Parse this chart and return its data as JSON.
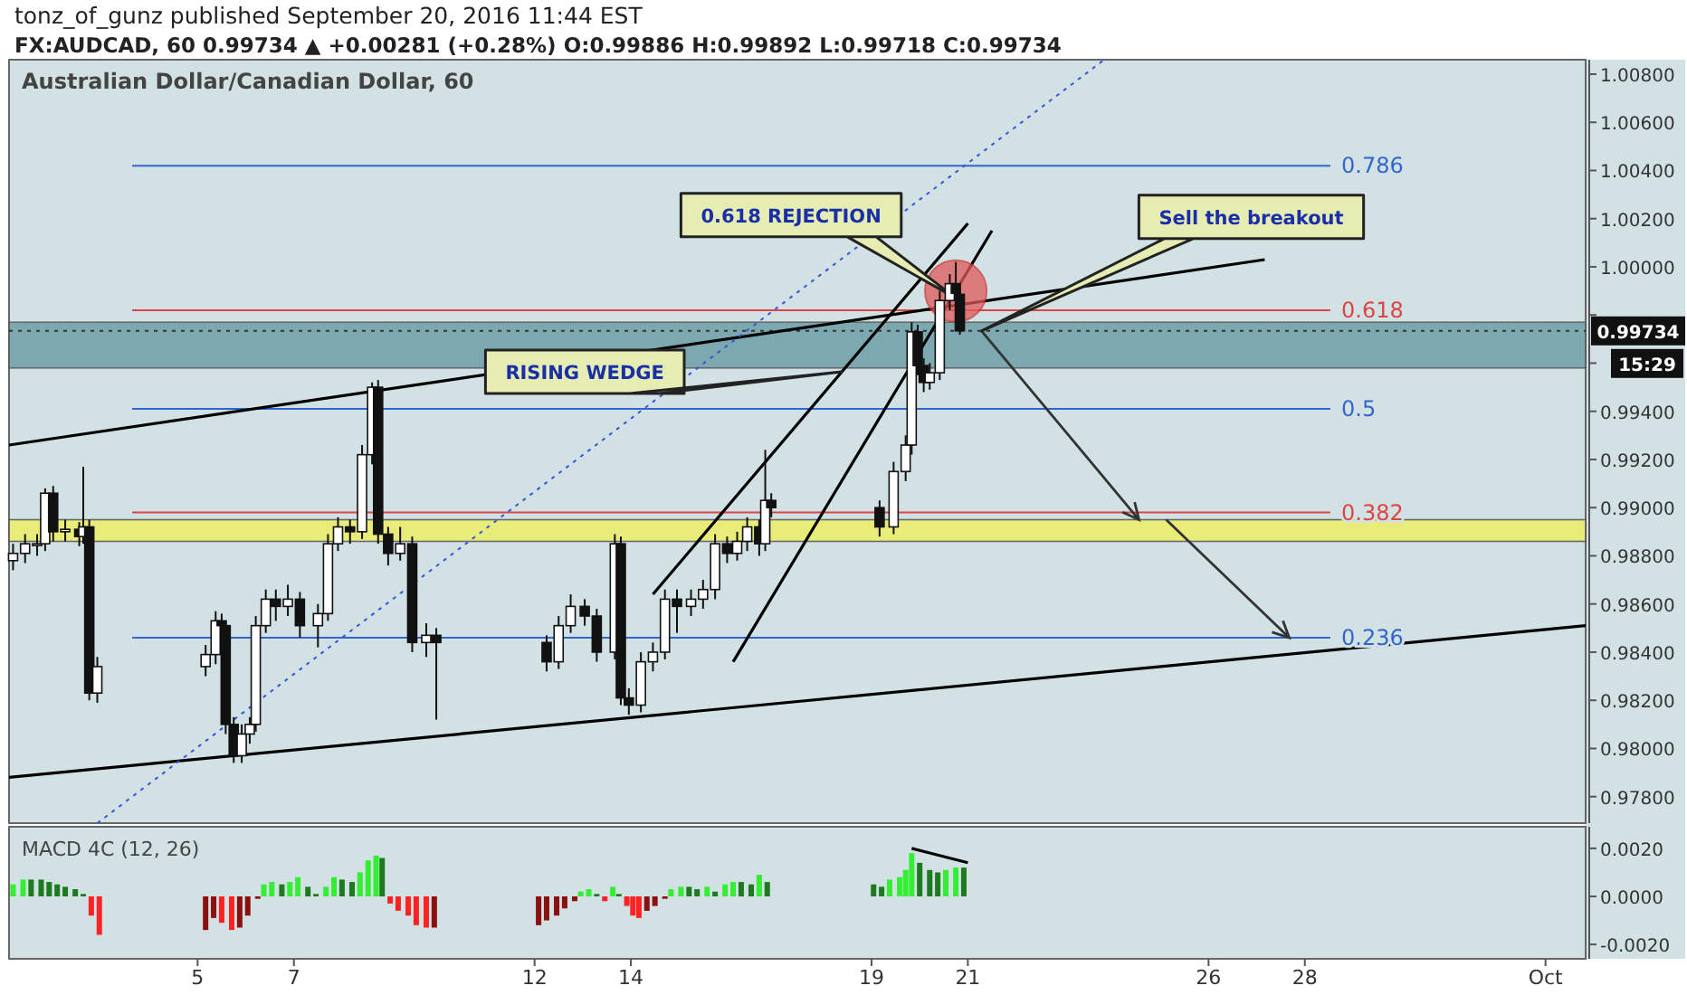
{
  "chart_data": [
    {
      "type": "candlestick",
      "title": "tonz_of_gunz published September 20, 2016 11:44 EST",
      "subtitle": "FX:AUDCAD, 60 0.99734 ▲ +0.00281 (+0.28%) O:0.99886 H:0.99892 L:0.99718 C:0.99734",
      "x": [
        "2016-09-01T04:00",
        "2016-09-01T10:00",
        "2016-09-01T16:00",
        "2016-09-01T20:00",
        "2016-09-02T00:00",
        "2016-09-02T06:00",
        "2016-09-02T13:00",
        "2016-09-02T15:00",
        "2016-09-02T18:00",
        "2016-09-02T22:00",
        "2016-09-05T04:00",
        "2016-09-05T09:00",
        "2016-09-05T12:00",
        "2016-09-05T14:00",
        "2016-09-05T18:00",
        "2016-09-05T22:00",
        "2016-09-06T02:00",
        "2016-09-06T05:00",
        "2016-09-06T10:00",
        "2016-09-06T15:00",
        "2016-09-06T21:00",
        "2016-09-07T03:00",
        "2016-09-07T12:00",
        "2016-09-07T17:00",
        "2016-09-07T22:00",
        "2016-09-08T04:00",
        "2016-09-08T10:00",
        "2016-09-08T15:00",
        "2016-09-08T18:00",
        "2016-09-08T23:00",
        "2016-09-09T05:00",
        "2016-09-09T11:00",
        "2016-09-09T18:00",
        "2016-09-09T23:00",
        "2016-09-12T06:00",
        "2016-09-12T12:00",
        "2016-09-12T18:00",
        "2016-09-13T01:00",
        "2016-09-13T07:00",
        "2016-09-13T16:00",
        "2016-09-13T19:00",
        "2016-09-13T23:00",
        "2016-09-14T05:00",
        "2016-09-14T11:00",
        "2016-09-14T17:00",
        "2016-09-14T23:00",
        "2016-09-15T06:00",
        "2016-09-15T12:00",
        "2016-09-15T18:00",
        "2016-09-16T00:00",
        "2016-09-16T05:00",
        "2016-09-16T10:00",
        "2016-09-16T16:00",
        "2016-09-16T19:00",
        "2016-09-16T22:00",
        "2016-09-19T04:00",
        "2016-09-19T11:00",
        "2016-09-19T17:00",
        "2016-09-19T20:00",
        "2016-09-19T23:00",
        "2016-09-20T02:00",
        "2016-09-20T05:00",
        "2016-09-20T10:00",
        "2016-09-20T15:00",
        "2016-09-20T18:00",
        "2016-09-20T20:00"
      ],
      "ohlc": [
        [
          0.9878,
          0.9885,
          0.9874,
          0.9881
        ],
        [
          0.9881,
          0.9889,
          0.9877,
          0.9885
        ],
        [
          0.9885,
          0.9889,
          0.988,
          0.9885
        ],
        [
          0.9885,
          0.9908,
          0.9882,
          0.9906
        ],
        [
          0.9906,
          0.9909,
          0.9886,
          0.989
        ],
        [
          0.989,
          0.9895,
          0.9886,
          0.9891
        ],
        [
          0.9891,
          0.9894,
          0.9884,
          0.9888
        ],
        [
          0.9888,
          0.9917,
          0.9885,
          0.9892
        ],
        [
          0.9892,
          0.9895,
          0.982,
          0.9823
        ],
        [
          0.9823,
          0.9838,
          0.9819,
          0.9834
        ],
        [
          0.9834,
          0.9843,
          0.983,
          0.9839
        ],
        [
          0.9839,
          0.9857,
          0.9835,
          0.9853
        ],
        [
          0.9853,
          0.9856,
          0.9846,
          0.9851
        ],
        [
          0.9851,
          0.9853,
          0.9806,
          0.981
        ],
        [
          0.981,
          0.9813,
          0.9794,
          0.9797
        ],
        [
          0.9797,
          0.981,
          0.9794,
          0.9806
        ],
        [
          0.9806,
          0.9813,
          0.9802,
          0.981
        ],
        [
          0.981,
          0.9855,
          0.9807,
          0.9851
        ],
        [
          0.9851,
          0.9866,
          0.9848,
          0.9862
        ],
        [
          0.9862,
          0.9866,
          0.9853,
          0.9859
        ],
        [
          0.9859,
          0.9868,
          0.9855,
          0.9862
        ],
        [
          0.9862,
          0.9865,
          0.9846,
          0.9851
        ],
        [
          0.9851,
          0.986,
          0.9842,
          0.9856
        ],
        [
          0.9856,
          0.9889,
          0.9853,
          0.9885
        ],
        [
          0.9885,
          0.9896,
          0.9882,
          0.9892
        ],
        [
          0.9892,
          0.9895,
          0.9885,
          0.989
        ],
        [
          0.989,
          0.9926,
          0.9887,
          0.9922
        ],
        [
          0.9922,
          0.9952,
          0.9918,
          0.995
        ],
        [
          0.995,
          0.9953,
          0.9885,
          0.9889
        ],
        [
          0.9889,
          0.9892,
          0.9876,
          0.9881
        ],
        [
          0.9881,
          0.9892,
          0.9878,
          0.9885
        ],
        [
          0.9885,
          0.9888,
          0.984,
          0.9844
        ],
        [
          0.9844,
          0.9852,
          0.9838,
          0.9847
        ],
        [
          0.9847,
          0.985,
          0.9812,
          0.9844
        ],
        [
          0.9844,
          0.9847,
          0.9832,
          0.9836
        ],
        [
          0.9836,
          0.9855,
          0.9833,
          0.9851
        ],
        [
          0.9851,
          0.9864,
          0.9848,
          0.9859
        ],
        [
          0.9859,
          0.9862,
          0.9851,
          0.9855
        ],
        [
          0.9855,
          0.9858,
          0.9836,
          0.984
        ],
        [
          0.984,
          0.9889,
          0.9837,
          0.9885
        ],
        [
          0.9885,
          0.9888,
          0.9818,
          0.9821
        ],
        [
          0.9821,
          0.9825,
          0.9814,
          0.9818
        ],
        [
          0.9818,
          0.984,
          0.9815,
          0.9836
        ],
        [
          0.9836,
          0.9844,
          0.9832,
          0.984
        ],
        [
          0.984,
          0.9866,
          0.9837,
          0.9862
        ],
        [
          0.9862,
          0.9866,
          0.9848,
          0.9859
        ],
        [
          0.9859,
          0.9866,
          0.9855,
          0.9862
        ],
        [
          0.9862,
          0.987,
          0.9858,
          0.9866
        ],
        [
          0.9866,
          0.9889,
          0.9862,
          0.9885
        ],
        [
          0.9885,
          0.9888,
          0.9877,
          0.9881
        ],
        [
          0.9881,
          0.989,
          0.9878,
          0.9886
        ],
        [
          0.9886,
          0.9896,
          0.9882,
          0.9892
        ],
        [
          0.9892,
          0.9895,
          0.988,
          0.9885
        ],
        [
          0.9885,
          0.9924,
          0.9882,
          0.9903
        ],
        [
          0.9903,
          0.9906,
          0.9896,
          0.99
        ],
        [
          0.99,
          0.9903,
          0.9888,
          0.9892
        ],
        [
          0.9892,
          0.9919,
          0.9889,
          0.9915
        ],
        [
          0.9915,
          0.993,
          0.9911,
          0.9926
        ],
        [
          0.9926,
          0.9977,
          0.9922,
          0.9973
        ],
        [
          0.9973,
          0.9976,
          0.9955,
          0.9959
        ],
        [
          0.9959,
          0.9962,
          0.9948,
          0.9952
        ],
        [
          0.9952,
          0.996,
          0.9949,
          0.9956
        ],
        [
          0.9956,
          0.999,
          0.9953,
          0.9986
        ],
        [
          0.9986,
          0.9997,
          0.9982,
          0.9993
        ],
        [
          0.9993,
          1.0002,
          0.9986,
          0.9989
        ],
        [
          0.99886,
          0.99892,
          0.99718,
          0.99734
        ]
      ],
      "xlim": [
        "2016-09-01T02:00",
        "2016-10-03T20:00"
      ],
      "ylim": [
        0.9769,
        1.0086
      ],
      "yticks": [
        {
          "value": 0.978,
          "label": "0.97800"
        },
        {
          "value": 0.98,
          "label": "0.98000"
        },
        {
          "value": 0.982,
          "label": "0.98200"
        },
        {
          "value": 0.984,
          "label": "0.98400"
        },
        {
          "value": 0.986,
          "label": "0.98600"
        },
        {
          "value": 0.988,
          "label": "0.98800"
        },
        {
          "value": 0.99,
          "label": "0.99000"
        },
        {
          "value": 0.992,
          "label": "0.99200"
        },
        {
          "value": 0.994,
          "label": "0.99400"
        },
        {
          "value": 0.996,
          "label": null
        },
        {
          "value": 0.998,
          "label": null
        },
        {
          "value": 1.0,
          "label": "1.00000"
        },
        {
          "value": 1.002,
          "label": "1.00200"
        },
        {
          "value": 1.004,
          "label": "1.00400"
        },
        {
          "value": 1.006,
          "label": "1.00600"
        },
        {
          "value": 1.008,
          "label": "1.00800"
        }
      ],
      "tick_labels": "y",
      "grid": false,
      "series": [
        {
          "type": "line",
          "x": [
            "2016-09-01T02:00",
            "2016-10-03T20:00"
          ],
          "values": [
            0.9788,
            0.9851
          ],
          "color": "#000000"
        },
        {
          "type": "line",
          "x": [
            "2016-09-01T02:00",
            "2016-09-27T04:00"
          ],
          "values": [
            0.9926,
            1.0003
          ],
          "color": "#000000"
        },
        {
          "type": "line",
          "x": [
            "2016-09-14T11:00",
            "2016-09-21T00:00"
          ],
          "values": [
            0.9864,
            1.0018
          ],
          "color": "#000000"
        },
        {
          "type": "line",
          "x": [
            "2016-09-16T03:00",
            "2016-09-21T12:00"
          ],
          "values": [
            0.9836,
            1.0015
          ],
          "color": "#000000"
        },
        {
          "type": "line",
          "x": [
            "2016-09-02T22:00",
            "2016-09-23T20:00"
          ],
          "values": [
            0.9769,
            1.0086
          ],
          "color": "#3355dd",
          "line_style": "dotted"
        }
      ],
      "ref_lines": [
        {
          "axis": "y",
          "value": 1.0042,
          "color": "#3366cc"
        },
        {
          "axis": "y",
          "value": 0.9982,
          "color": "#dd4444"
        },
        {
          "axis": "y",
          "value": 0.9941,
          "color": "#3366cc"
        },
        {
          "axis": "y",
          "value": 0.9898,
          "color": "#dd4444"
        },
        {
          "axis": "y",
          "value": 0.9846,
          "color": "#3366cc"
        },
        {
          "axis": "y",
          "value": 0.99734,
          "label": "0.99734",
          "color": "#333333",
          "line_style": "dotted"
        }
      ],
      "bands": [
        {
          "axis": "y",
          "from": 0.9958,
          "to": 0.9977,
          "color": "#6e9fa8"
        },
        {
          "axis": "y",
          "from": 0.9886,
          "to": 0.9895,
          "color": "#eeee66"
        }
      ],
      "annotations": [
        "Australian Dollar/Canadian Dollar, 60",
        "0.618 REJECTION",
        "Sell the breakout",
        "RISING WEDGE",
        "15:29",
        "0.786",
        "0.618",
        "0.5",
        "0.382",
        "0.236"
      ]
    },
    {
      "type": "bar",
      "title": "MACD 4C (12, 26)",
      "xlim": [
        "2016-09-01T02:00",
        "2016-10-03T20:00"
      ],
      "xticks": [
        {
          "value": "2016-09-05",
          "label": "5"
        },
        {
          "value": "2016-09-07",
          "label": "7"
        },
        {
          "value": "2016-09-12",
          "label": "12"
        },
        {
          "value": "2016-09-14",
          "label": "14"
        },
        {
          "value": "2016-09-19",
          "label": "19"
        },
        {
          "value": "2016-09-21",
          "label": "21"
        },
        {
          "value": "2016-09-26",
          "label": "26"
        },
        {
          "value": "2016-09-28",
          "label": "28"
        },
        {
          "value": "2016-10-03",
          "label": "Oct"
        }
      ],
      "ylim": [
        -0.0026,
        0.0029
      ],
      "yticks": [
        {
          "value": 0.002,
          "label": "0.0020"
        },
        {
          "value": 0,
          "label": "0.0000"
        },
        {
          "value": -0.002,
          "label": "-0.0020"
        }
      ],
      "grid": false,
      "series": [
        {
          "type": "bar",
          "x": [
            "2016-09-01T04:00",
            "2016-09-01T09:00",
            "2016-09-01T13:00",
            "2016-09-01T18:00",
            "2016-09-01T22:00",
            "2016-09-02T02:00",
            "2016-09-02T06:00",
            "2016-09-02T11:00",
            "2016-09-02T15:00",
            "2016-09-02T19:00",
            "2016-09-02T23:00",
            "2016-09-05T04:00",
            "2016-09-05T08:00",
            "2016-09-05T12:00",
            "2016-09-05T17:00",
            "2016-09-05T21:00",
            "2016-09-06T01:00",
            "2016-09-06T06:00",
            "2016-09-06T09:00",
            "2016-09-06T13:00",
            "2016-09-06T18:00",
            "2016-09-06T22:00",
            "2016-09-07T02:00",
            "2016-09-07T07:00",
            "2016-09-07T11:00",
            "2016-09-07T16:00",
            "2016-09-07T20:00",
            "2016-09-08T00:00",
            "2016-09-08T05:00",
            "2016-09-08T09:00",
            "2016-09-08T13:00",
            "2016-09-08T17:00",
            "2016-09-08T20:00",
            "2016-09-09T00:00",
            "2016-09-09T04:00",
            "2016-09-09T09:00",
            "2016-09-09T13:00",
            "2016-09-09T18:00",
            "2016-09-09T22:00",
            "2016-09-12T02:00",
            "2016-09-12T06:00",
            "2016-09-12T11:00",
            "2016-09-12T15:00",
            "2016-09-12T20:00",
            "2016-09-12T23:00",
            "2016-09-13T03:00",
            "2016-09-13T07:00",
            "2016-09-13T11:00",
            "2016-09-13T15:00",
            "2016-09-13T18:00",
            "2016-09-13T22:00",
            "2016-09-14T01:00",
            "2016-09-14T04:00",
            "2016-09-14T08:00",
            "2016-09-14T12:00",
            "2016-09-14T17:00",
            "2016-09-14T20:00",
            "2016-09-15T01:00",
            "2016-09-15T05:00",
            "2016-09-15T09:00",
            "2016-09-15T14:00",
            "2016-09-15T18:00",
            "2016-09-15T23:00",
            "2016-09-16T03:00",
            "2016-09-16T07:00",
            "2016-09-16T12:00",
            "2016-09-16T16:00",
            "2016-09-16T20:00",
            "2016-09-19T01:00",
            "2016-09-19T05:00",
            "2016-09-19T09:00",
            "2016-09-19T14:00",
            "2016-09-19T17:00",
            "2016-09-19T20:00",
            "2016-09-20T00:00",
            "2016-09-20T05:00",
            "2016-09-20T09:00",
            "2016-09-20T13:00",
            "2016-09-20T18:00",
            "2016-09-20T22:00"
          ],
          "values": [
            0.0005,
            0.0007,
            0.0007,
            0.0007,
            0.0006,
            0.0005,
            0.0004,
            0.0003,
            0.0001,
            -0.0008,
            -0.0016,
            -0.0014,
            -0.0009,
            -0.0011,
            -0.0014,
            -0.0013,
            -0.0008,
            -0.0001,
            0.0005,
            0.0006,
            0.0005,
            0.0006,
            0.0008,
            0.0004,
            0.0001,
            0.0004,
            0.0008,
            0.0007,
            0.0006,
            0.001,
            0.0015,
            0.0017,
            0.0016,
            -0.0003,
            -0.0006,
            -0.0008,
            -0.0012,
            -0.0013,
            -0.0013,
            -0.0012,
            -0.001,
            -0.0008,
            -0.0005,
            -0.0002,
            0.0002,
            0.0003,
            0.0001,
            -0.0002,
            0.0004,
            0.0001,
            -0.0004,
            -0.0008,
            -0.0009,
            -0.0006,
            -0.0004,
            -0.0001,
            0.0003,
            0.0004,
            0.0004,
            0.0003,
            0.0004,
            0.0002,
            0.0005,
            0.0006,
            0.0006,
            0.0005,
            0.0009,
            0.0006,
            0.0005,
            0.0004,
            0.0007,
            0.0008,
            0.0011,
            0.0018,
            0.0014,
            0.0011,
            0.001,
            0.0011,
            0.0012,
            0.0012
          ],
          "colors": [
            "#33ee33",
            "#33ee33",
            "#1e7a1e",
            "#1e7a1e",
            "#1e7a1e",
            "#1e7a1e",
            "#1e7a1e",
            "#1e7a1e",
            "#1e7a1e",
            "#ff2222",
            "#ff2222",
            "#8b1010",
            "#8b1010",
            "#ff2222",
            "#ff2222",
            "#8b1010",
            "#8b1010",
            "#8b1010",
            "#33ee33",
            "#33ee33",
            "#1e7a1e",
            "#33ee33",
            "#33ee33",
            "#1e7a1e",
            "#1e7a1e",
            "#33ee33",
            "#33ee33",
            "#1e7a1e",
            "#1e7a1e",
            "#33ee33",
            "#33ee33",
            "#33ee33",
            "#1e7a1e",
            "#ff2222",
            "#ff2222",
            "#ff2222",
            "#ff2222",
            "#ff2222",
            "#8b1010",
            "#8b1010",
            "#8b1010",
            "#8b1010",
            "#8b1010",
            "#8b1010",
            "#33ee33",
            "#33ee33",
            "#1e7a1e",
            "#ff2222",
            "#33ee33",
            "#1e7a1e",
            "#ff2222",
            "#ff2222",
            "#ff2222",
            "#8b1010",
            "#8b1010",
            "#8b1010",
            "#33ee33",
            "#33ee33",
            "#1e7a1e",
            "#1e7a1e",
            "#33ee33",
            "#1e7a1e",
            "#33ee33",
            "#33ee33",
            "#1e7a1e",
            "#1e7a1e",
            "#33ee33",
            "#1e7a1e",
            "#1e7a1e",
            "#1e7a1e",
            "#33ee33",
            "#33ee33",
            "#33ee33",
            "#33ee33",
            "#1e7a1e",
            "#1e7a1e",
            "#1e7a1e",
            "#33ee33",
            "#33ee33",
            "#1e7a1e"
          ]
        },
        {
          "type": "line",
          "x": [
            "2016-09-19T20:00",
            "2016-09-21T00:00"
          ],
          "values": [
            0.002,
            0.0014
          ],
          "color": "#000000"
        }
      ]
    }
  ]
}
